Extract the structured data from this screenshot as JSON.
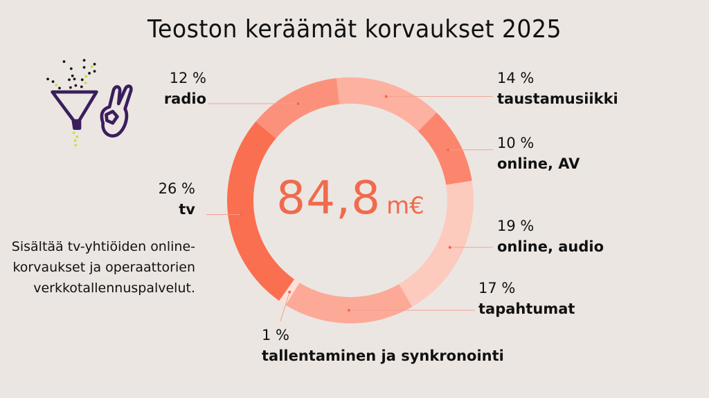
{
  "title": "Teoston keräämät korvaukset 2025",
  "center": {
    "value": "84,8",
    "unit": "m€"
  },
  "note": "Sisältää tv-yhtiöiden online-korvaukset ja operaattorien verkkotallennuspalvelut.",
  "labels": {
    "radio": {
      "pct": "12 %",
      "name": "radio"
    },
    "taustamusiikki": {
      "pct": "14 %",
      "name": "taustamusiikki"
    },
    "online_av": {
      "pct": "10 %",
      "name": "online, AV"
    },
    "tv": {
      "pct": "26 %",
      "name": "tv"
    },
    "online_audio": {
      "pct": "19 %",
      "name": "online, audio"
    },
    "tapahtumat": {
      "pct": "17 %",
      "name": "tapahtumat"
    },
    "tallentaminen": {
      "pct": "1 %",
      "name": "tallentaminen ja synkronointi"
    }
  },
  "icon": "funnel-ok-hand-icon",
  "colors": {
    "background": "#ebe6e2",
    "accent": "#f06a4d",
    "leader_line": "#f4a090"
  },
  "chart_data": {
    "type": "pie",
    "variant": "donut",
    "title": "Teoston keräämät korvaukset 2025",
    "total": 84.8,
    "total_label": "84,8 m€",
    "unit": "%",
    "start_angle_deg": -6.5,
    "direction": "clockwise",
    "categories": [
      "taustamusiikki",
      "online, AV",
      "online, audio",
      "tapahtumat",
      "tallentaminen ja synkronointi",
      "tv",
      "radio"
    ],
    "values": [
      14,
      10,
      19,
      17,
      1,
      26,
      12
    ],
    "colors": [
      "#fdb1a0",
      "#fc856d",
      "#fdcabe",
      "#fca997",
      "#fde0d8",
      "#fa6f4f",
      "#fc917b"
    ],
    "annotations": [
      "tv: Sisältää tv-yhtiöiden online-korvaukset ja operaattorien verkkotallennuspalvelut."
    ]
  }
}
